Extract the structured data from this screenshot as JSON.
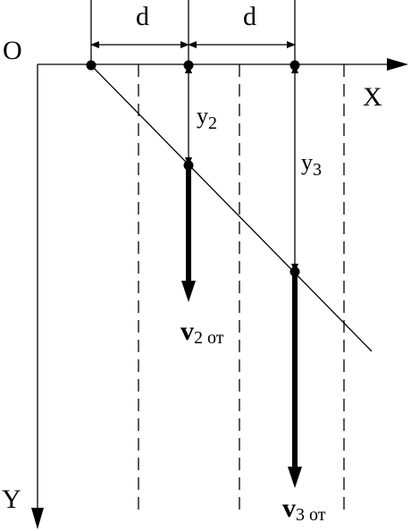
{
  "labels": {
    "origin": "O",
    "x_axis": "X",
    "y_axis": "Y",
    "d_left": "d",
    "d_right": "d",
    "y2": {
      "main": "y",
      "sub": "2"
    },
    "y3": {
      "main": "y",
      "sub": "3"
    },
    "v2": {
      "main": "v",
      "sub": "2 от"
    },
    "v3": {
      "main": "v",
      "sub": "3 от"
    }
  }
}
